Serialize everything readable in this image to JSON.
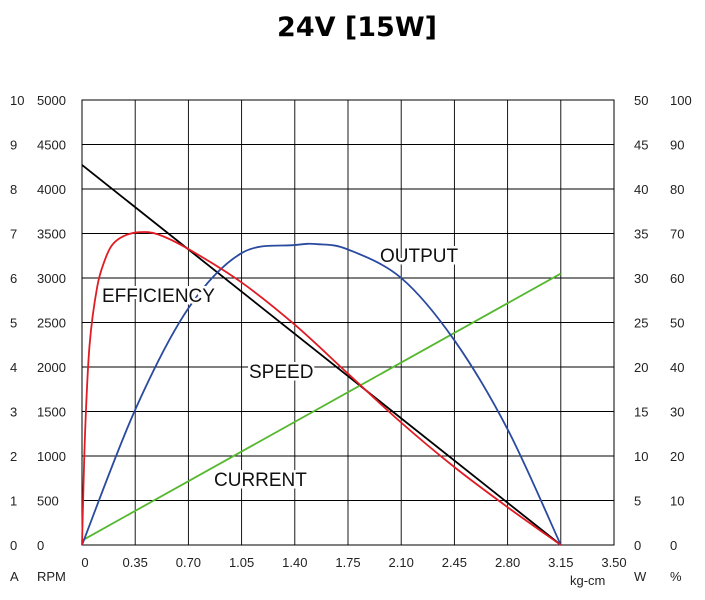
{
  "chart_data": {
    "type": "line",
    "title": "24V [15W]",
    "xlabel": "kg-cm",
    "x_ticks": [
      "0",
      "0.35",
      "0.70",
      "1.05",
      "1.40",
      "1.75",
      "2.10",
      "2.45",
      "2.80",
      "3.15",
      "3.50"
    ],
    "xlim": [
      0,
      3.5
    ],
    "axes": {
      "current": {
        "unit": "A",
        "range": [
          0,
          10
        ],
        "ticks": [
          "0",
          "1",
          "2",
          "3",
          "4",
          "5",
          "6",
          "7",
          "8",
          "9",
          "10"
        ]
      },
      "speed": {
        "unit": "RPM",
        "range": [
          0,
          5000
        ],
        "ticks": [
          "0",
          "500",
          "1000",
          "1500",
          "2000",
          "2500",
          "3000",
          "3500",
          "4000",
          "4500",
          "5000"
        ]
      },
      "output": {
        "unit": "W",
        "range": [
          0,
          50
        ],
        "ticks": [
          "0",
          "5",
          "10",
          "15",
          "20",
          "25",
          "30",
          "35",
          "40",
          "45",
          "50"
        ]
      },
      "efficiency": {
        "unit": "%",
        "range": [
          0,
          100
        ],
        "ticks": [
          "0",
          "10",
          "20",
          "30",
          "40",
          "50",
          "60",
          "70",
          "80",
          "90",
          "100"
        ]
      }
    },
    "grid": true,
    "series": [
      {
        "name": "SPEED",
        "axis": "speed",
        "color": "#000000",
        "x": [
          0,
          3.15
        ],
        "y": [
          4270,
          0
        ]
      },
      {
        "name": "CURRENT",
        "axis": "current",
        "color": "#55b82e",
        "x": [
          0,
          3.15
        ],
        "y": [
          0.1,
          6.1
        ]
      },
      {
        "name": "OUTPUT",
        "axis": "output",
        "color": "#2a4aa0",
        "x": [
          0,
          0.35,
          0.7,
          1.05,
          1.4,
          1.55,
          1.75,
          2.1,
          2.45,
          2.8,
          3.15
        ],
        "y": [
          0,
          15.2,
          26.6,
          32.8,
          33.7,
          33.8,
          33.2,
          30.0,
          23.0,
          13.0,
          0
        ]
      },
      {
        "name": "EFFICIENCY",
        "axis": "efficiency",
        "color": "#e01b24",
        "x": [
          0,
          0.02,
          0.05,
          0.1,
          0.15,
          0.2,
          0.28,
          0.38,
          0.5,
          0.7,
          1.05,
          1.4,
          1.75,
          2.1,
          2.45,
          2.8,
          3.15
        ],
        "y": [
          0,
          25,
          45,
          58,
          64,
          67.5,
          69.5,
          70.3,
          69.8,
          66.5,
          59,
          49.5,
          38.5,
          27.5,
          17.5,
          8.5,
          0
        ]
      }
    ]
  }
}
